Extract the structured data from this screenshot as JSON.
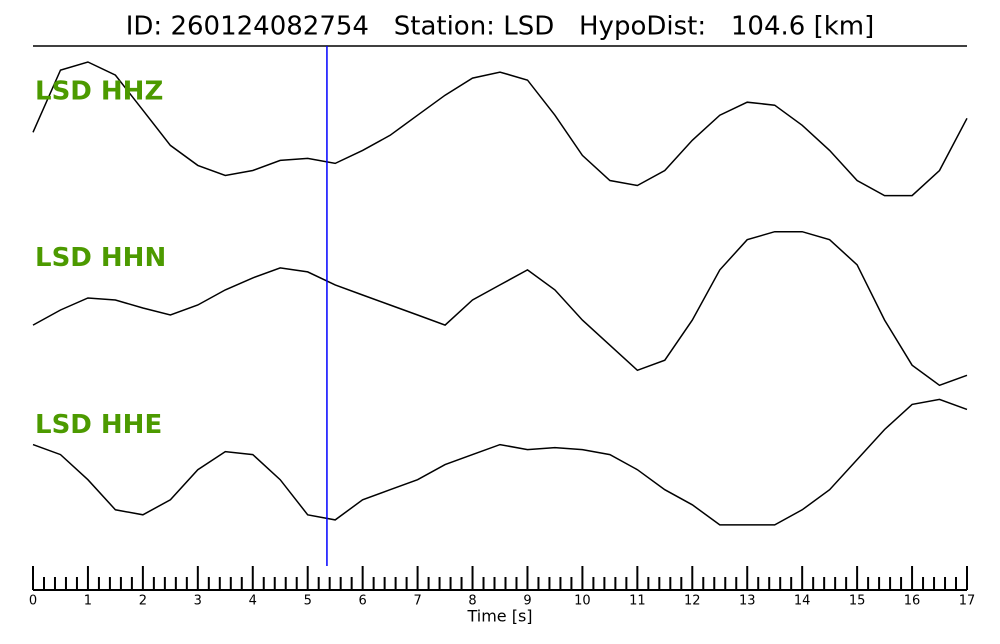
{
  "chart_data": {
    "type": "line",
    "title": "ID: 260124082754   Station: LSD   HypoDist:   104.6 [km]",
    "x_label": "Time [s]",
    "xlim": [
      0,
      17
    ],
    "xticks": [
      0,
      1,
      2,
      3,
      4,
      5,
      6,
      7,
      8,
      9,
      10,
      11,
      12,
      13,
      14,
      15,
      16,
      17
    ],
    "xminorticks": [
      0.2,
      0.4,
      0.6,
      0.8,
      1.2,
      1.4,
      1.6,
      1.8,
      2.2,
      2.4,
      2.6,
      2.8,
      3.2,
      3.4,
      3.6,
      3.8,
      4.2,
      4.4,
      4.6,
      4.8,
      5.2,
      5.4,
      5.6,
      5.8,
      6.2,
      6.4,
      6.6,
      6.8,
      7.2,
      7.4,
      7.6,
      7.8,
      8.2,
      8.4,
      8.6,
      8.8,
      9.2,
      9.4,
      9.6,
      9.8,
      10.2,
      10.4,
      10.6,
      10.8,
      11.2,
      11.4,
      11.6,
      11.8,
      12.2,
      12.4,
      12.6,
      12.8,
      13.2,
      13.4,
      13.6,
      13.8,
      14.2,
      14.4,
      14.6,
      14.8,
      15.2,
      15.4,
      15.6,
      15.8,
      16.2,
      16.4,
      16.6,
      16.8
    ],
    "ylim": [
      -83,
      83
    ],
    "pick_time": 5.35,
    "pick_color": "#0000ff",
    "label_color": "#4c9a00",
    "x": [
      0,
      0.5,
      1,
      1.5,
      2,
      2.5,
      3,
      3.5,
      4,
      4.5,
      5,
      5.5,
      6,
      6.5,
      7,
      7.5,
      8,
      8.5,
      9,
      9.5,
      10,
      10.5,
      11,
      11.5,
      12,
      12.5,
      13,
      13.5,
      14,
      14.5,
      15,
      15.5,
      16,
      16.5,
      17
    ],
    "series": [
      {
        "name": "LSD HHZ",
        "color": "#000000",
        "values": [
          6,
          68,
          76,
          63,
          28,
          -7,
          -27,
          -37,
          -32,
          -22,
          -20,
          -25,
          -12,
          3,
          23,
          43,
          60,
          66,
          58,
          23,
          -17,
          -42,
          -47,
          -32,
          -2,
          23,
          36,
          33,
          13,
          -12,
          -42,
          -57,
          -57,
          -32,
          20
        ]
      },
      {
        "name": "LSD HHN",
        "color": "#000000",
        "values": [
          -20,
          -5,
          7,
          5,
          -3,
          -10,
          0,
          15,
          27,
          37,
          33,
          20,
          10,
          0,
          -10,
          -20,
          5,
          20,
          35,
          15,
          -15,
          -40,
          -65,
          -55,
          -15,
          35,
          65,
          73,
          73,
          65,
          40,
          -15,
          -60,
          -80,
          -70
        ]
      },
      {
        "name": "LSD HHE",
        "color": "#000000",
        "values": [
          27,
          17,
          -8,
          -38,
          -43,
          -28,
          2,
          20,
          17,
          -8,
          -43,
          -48,
          -28,
          -18,
          -8,
          7,
          17,
          27,
          22,
          24,
          22,
          17,
          2,
          -18,
          -33,
          -53,
          -53,
          -53,
          -38,
          -18,
          12,
          42,
          67,
          72,
          62
        ]
      }
    ]
  }
}
